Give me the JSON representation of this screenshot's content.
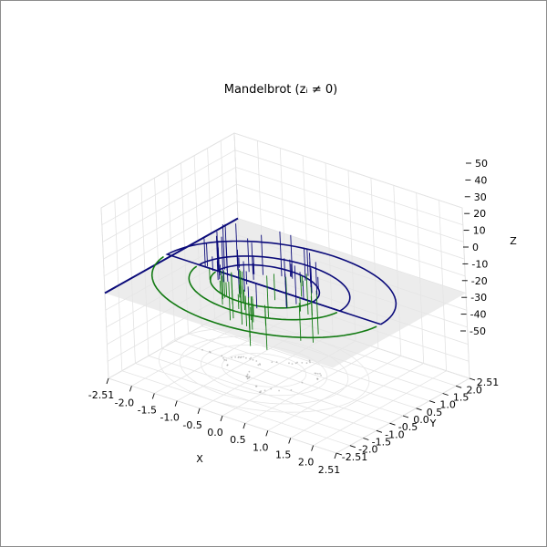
{
  "chart_data": {
    "type": "3d-surface-contour",
    "title": "Mandelbrot (zᵢ ≠ 0)",
    "xlabel": "X",
    "ylabel": "Y",
    "zlabel": "Z",
    "xlim": [
      -2.51,
      2.51
    ],
    "ylim": [
      -2.51,
      2.51
    ],
    "zlim": [
      -50,
      50
    ],
    "x_ticks": [
      "-2.51",
      "-2.0",
      "-1.5",
      "-1.0",
      "-0.5",
      "0.0",
      "0.5",
      "1.0",
      "1.5",
      "2.0",
      "2.51"
    ],
    "y_ticks": [
      "-2.51",
      "-2.0",
      "-1.5",
      "-1.0",
      "-0.5",
      "0.0",
      "0.5",
      "1.0",
      "1.5",
      "2.0",
      "2.51"
    ],
    "z_ticks": [
      "-50",
      "-40",
      "-30",
      "-20",
      "-10",
      "0",
      "10",
      "20",
      "30",
      "40",
      "50"
    ],
    "grid": true,
    "colors": {
      "upper": "#0b0b7a",
      "lower": "#127a12",
      "plane": "#e6e6e6",
      "floor_projection": "#9a9a9a"
    },
    "series": []
  }
}
